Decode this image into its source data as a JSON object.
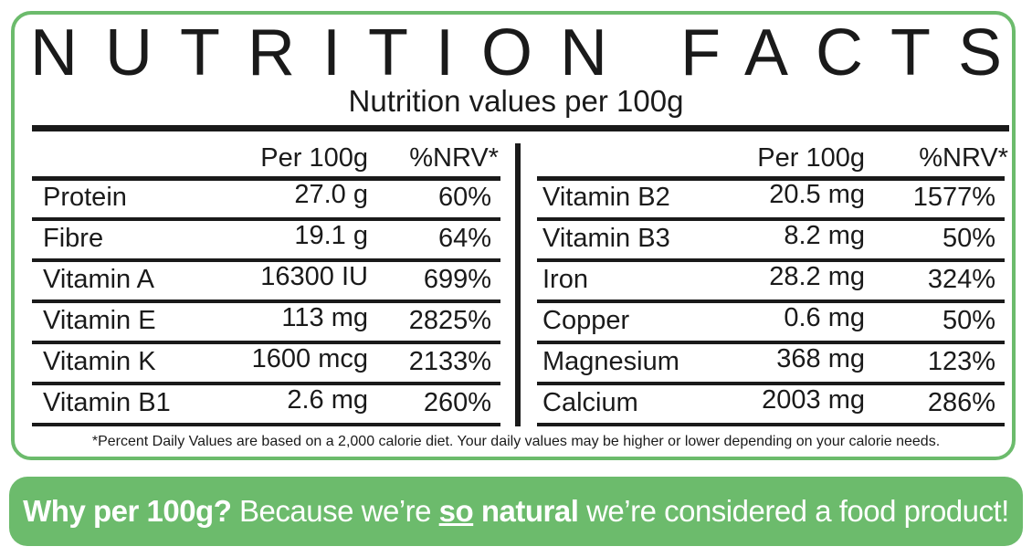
{
  "header": {
    "title": "NUTRITION FACTS",
    "subtitle": "Nutrition values per 100g"
  },
  "left_table": {
    "columns": [
      "Per 100g",
      "%NRV*"
    ],
    "rows": [
      [
        "Protein",
        "27.0 g",
        "60%"
      ],
      [
        "Fibre",
        "19.1 g",
        "64%"
      ],
      [
        "Vitamin A",
        "16300 IU",
        "699%"
      ],
      [
        "Vitamin E",
        "113 mg",
        "2825%"
      ],
      [
        "Vitamin K",
        "1600 mcg",
        "2133%"
      ],
      [
        "Vitamin B1",
        "2.6 mg",
        "260%"
      ]
    ]
  },
  "right_table": {
    "columns": [
      "Per 100g",
      "%NRV*"
    ],
    "rows": [
      [
        "Vitamin B2",
        "20.5 mg",
        "1577%"
      ],
      [
        "Vitamin B3",
        "8.2 mg",
        "50%"
      ],
      [
        "Iron",
        "28.2 mg",
        "324%"
      ],
      [
        "Copper",
        "0.6 mg",
        "50%"
      ],
      [
        "Magnesium",
        "368 mg",
        "123%"
      ],
      [
        "Calcium",
        "2003 mg",
        "286%"
      ]
    ]
  },
  "footnote": "*Percent Daily Values are based on a 2,000 calorie diet. Your daily values may be higher or lower depending on your calorie needs.",
  "banner": {
    "segments": [
      "Why per 100g?",
      "Because we’re",
      "so",
      "natural",
      "we’re considered a food product!"
    ]
  }
}
